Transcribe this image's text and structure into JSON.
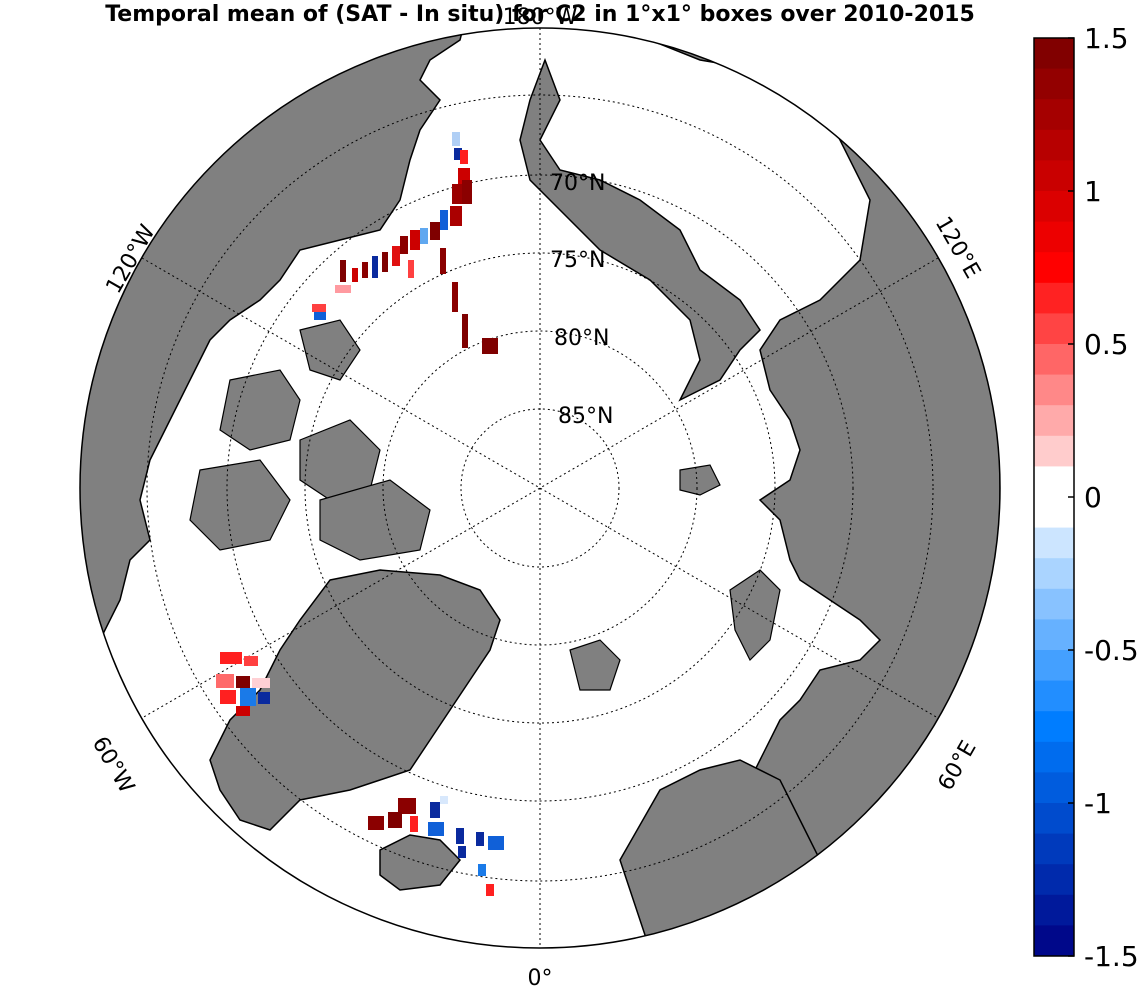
{
  "title": "Temporal mean of (SAT - In situ) for C2 in 1°x1° boxes over 2010-2015",
  "lat_labels": [
    "70°N",
    "75°N",
    "80°N",
    "85°N"
  ],
  "lon_labels": {
    "top": "180°W",
    "upper_left": "120°W",
    "upper_right": "120°E",
    "lower_left": "60°W",
    "lower_right": "60°E",
    "bottom": "0°"
  },
  "colorbar": {
    "min": -1.5,
    "max": 1.5,
    "ticks": [
      "1.5",
      "1",
      "0.5",
      "0",
      "-0.5",
      "-1",
      "-1.5"
    ],
    "levels": 30
  },
  "colors": {
    "land": "#808080",
    "ocean": "#ffffff",
    "coast": "#000000"
  }
}
